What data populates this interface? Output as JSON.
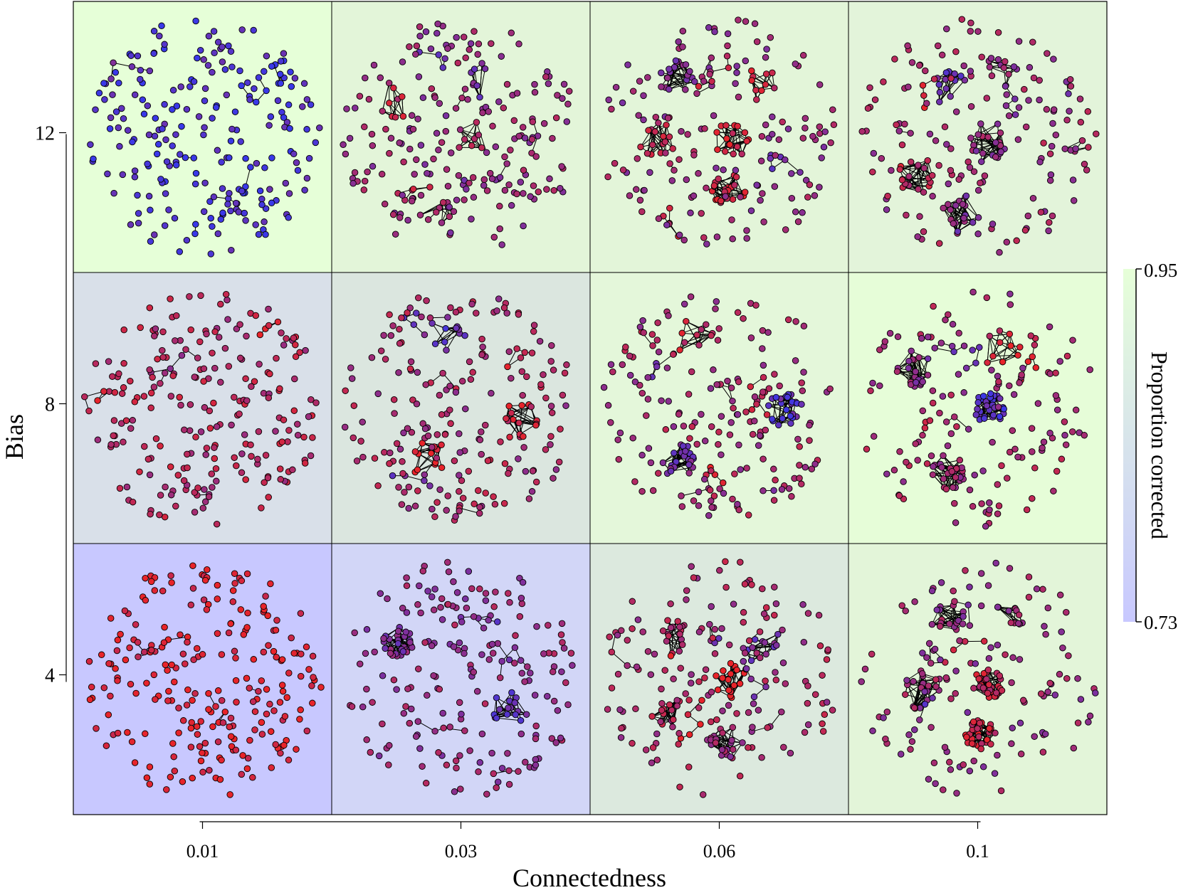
{
  "chart_data": {
    "type": "network-grid",
    "xlabel": "Connectedness",
    "ylabel": "Bias",
    "x_categories": [
      "0.01",
      "0.03",
      "0.06",
      "0.1"
    ],
    "y_categories": [
      "12",
      "8",
      "4"
    ],
    "colorbar": {
      "label": "Proportion corrected",
      "min": 0.73,
      "max": 0.95,
      "min_label": "0.73",
      "max_label": "0.95",
      "color_min": "#c8c8ff",
      "color_max": "#e6ffd8"
    },
    "node_colors": {
      "red": "#e8242a",
      "blue": "#3a38e8"
    },
    "panels": [
      {
        "bias": "12",
        "connectedness": "0.01",
        "proportion_corrected": 0.95,
        "bg": "#e6ffd8",
        "redness": 0.12,
        "clusters": []
      },
      {
        "bias": "12",
        "connectedness": "0.03",
        "proportion_corrected": 0.91,
        "bg": "#e3f5d9",
        "redness": 0.55,
        "clusters": [
          {
            "n": 9,
            "spread": 0.08
          },
          {
            "n": 8,
            "spread": 0.07
          },
          {
            "n": 9,
            "spread": 0.08
          },
          {
            "n": 8,
            "spread": 0.07
          }
        ]
      },
      {
        "bias": "12",
        "connectedness": "0.06",
        "proportion_corrected": 0.91,
        "bg": "#e3f5d9",
        "redness": 0.55,
        "clusters": [
          {
            "n": 18,
            "spread": 0.07
          },
          {
            "n": 22,
            "spread": 0.08
          },
          {
            "n": 16,
            "spread": 0.07
          },
          {
            "n": 20,
            "spread": 0.08
          },
          {
            "n": 10,
            "spread": 0.07
          }
        ]
      },
      {
        "bias": "12",
        "connectedness": "0.1",
        "proportion_corrected": 0.91,
        "bg": "#e3f4da",
        "redness": 0.6,
        "clusters": [
          {
            "n": 22,
            "spread": 0.08
          },
          {
            "n": 22,
            "spread": 0.08
          },
          {
            "n": 20,
            "spread": 0.08
          },
          {
            "n": 14,
            "spread": 0.07
          },
          {
            "n": 10,
            "spread": 0.07
          }
        ]
      },
      {
        "bias": "8",
        "connectedness": "0.01",
        "proportion_corrected": 0.84,
        "bg": "#d9e0e9",
        "redness": 0.72,
        "clusters": []
      },
      {
        "bias": "8",
        "connectedness": "0.03",
        "proportion_corrected": 0.86,
        "bg": "#dbe6df",
        "redness": 0.65,
        "clusters": [
          {
            "n": 14,
            "spread": 0.07
          },
          {
            "n": 12,
            "spread": 0.08
          },
          {
            "n": 10,
            "spread": 0.08
          }
        ]
      },
      {
        "bias": "8",
        "connectedness": "0.06",
        "proportion_corrected": 0.93,
        "bg": "#e4f7da",
        "redness": 0.62,
        "clusters": [
          {
            "n": 24,
            "spread": 0.07
          },
          {
            "n": 22,
            "spread": 0.07
          },
          {
            "n": 10,
            "spread": 0.08
          }
        ]
      },
      {
        "bias": "8",
        "connectedness": "0.1",
        "proportion_corrected": 0.95,
        "bg": "#e6fdd8",
        "redness": 0.62,
        "clusters": [
          {
            "n": 30,
            "spread": 0.06
          },
          {
            "n": 28,
            "spread": 0.07
          },
          {
            "n": 22,
            "spread": 0.07
          },
          {
            "n": 10,
            "spread": 0.08
          }
        ]
      },
      {
        "bias": "4",
        "connectedness": "0.01",
        "proportion_corrected": 0.73,
        "bg": "#c8c8ff",
        "redness": 0.95,
        "clusters": []
      },
      {
        "bias": "4",
        "connectedness": "0.03",
        "proportion_corrected": 0.75,
        "bg": "#d2d6f7",
        "redness": 0.55,
        "clusters": [
          {
            "n": 16,
            "spread": 0.07
          },
          {
            "n": 30,
            "spread": 0.06
          }
        ]
      },
      {
        "bias": "4",
        "connectedness": "0.06",
        "proportion_corrected": 0.87,
        "bg": "#dce9de",
        "redness": 0.65,
        "clusters": [
          {
            "n": 18,
            "spread": 0.07
          },
          {
            "n": 22,
            "spread": 0.07
          },
          {
            "n": 16,
            "spread": 0.07
          },
          {
            "n": 16,
            "spread": 0.07
          },
          {
            "n": 12,
            "spread": 0.08
          }
        ]
      },
      {
        "bias": "4",
        "connectedness": "0.1",
        "proportion_corrected": 0.91,
        "bg": "#e3f5d9",
        "redness": 0.55,
        "clusters": [
          {
            "n": 32,
            "spread": 0.06
          },
          {
            "n": 32,
            "spread": 0.06
          },
          {
            "n": 20,
            "spread": 0.08
          },
          {
            "n": 16,
            "spread": 0.07
          },
          {
            "n": 10,
            "spread": 0.07
          }
        ]
      }
    ]
  }
}
